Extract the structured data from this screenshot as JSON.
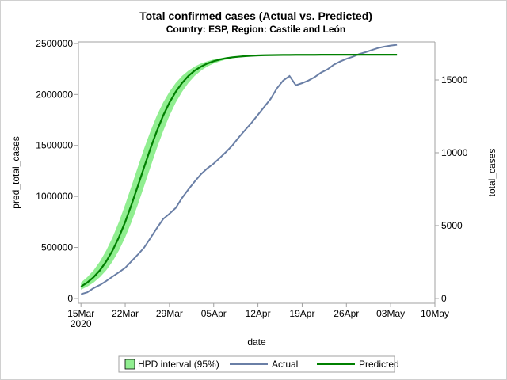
{
  "chart_data": {
    "type": "line",
    "title": "Total confirmed cases (Actual vs. Predicted)",
    "subtitle": "Country: ESP, Region: Castile and León",
    "xlabel": "date",
    "ylabel": "pred_total_cases",
    "y2label": "total_cases",
    "x_ticks": [
      "15Mar",
      "22Mar",
      "29Mar",
      "05Apr",
      "12Apr",
      "19Apr",
      "26Apr",
      "03May",
      "10May"
    ],
    "x_tick_dates": [
      "2020-03-15",
      "2020-03-22",
      "2020-03-29",
      "2020-04-05",
      "2020-04-12",
      "2020-04-19",
      "2020-04-26",
      "2020-05-03",
      "2020-05-10"
    ],
    "x_year_label": "2020",
    "xlim": [
      "2020-03-15",
      "2020-05-10"
    ],
    "y_ticks": [
      0,
      500000,
      1000000,
      1500000,
      2000000,
      2500000
    ],
    "y2_ticks": [
      0,
      5000,
      10000,
      15000
    ],
    "ylim": [
      -47000,
      2515000
    ],
    "y2lim": [
      -330,
      17610
    ],
    "grid": false,
    "legend_placement": "bottom",
    "colors": {
      "band": "#90ee90",
      "actual": "#6a7fa6",
      "predicted": "#008000",
      "axis": "#a0a0a0"
    },
    "x": [
      "2020-03-15",
      "2020-03-16",
      "2020-03-17",
      "2020-03-18",
      "2020-03-19",
      "2020-03-20",
      "2020-03-21",
      "2020-03-22",
      "2020-03-23",
      "2020-03-24",
      "2020-03-25",
      "2020-03-26",
      "2020-03-27",
      "2020-03-28",
      "2020-03-29",
      "2020-03-30",
      "2020-03-31",
      "2020-04-01",
      "2020-04-02",
      "2020-04-03",
      "2020-04-04",
      "2020-04-05",
      "2020-04-06",
      "2020-04-07",
      "2020-04-08",
      "2020-04-09",
      "2020-04-10",
      "2020-04-11",
      "2020-04-12",
      "2020-04-13",
      "2020-04-14",
      "2020-04-15",
      "2020-04-16",
      "2020-04-17",
      "2020-04-18",
      "2020-04-19",
      "2020-04-20",
      "2020-04-21",
      "2020-04-22",
      "2020-04-23",
      "2020-04-24",
      "2020-04-25",
      "2020-04-26",
      "2020-04-27",
      "2020-04-28",
      "2020-04-29",
      "2020-04-30",
      "2020-05-01",
      "2020-05-02",
      "2020-05-03",
      "2020-05-04"
    ],
    "series": [
      {
        "name": "HPD interval (95%)",
        "type": "band",
        "axis": "left",
        "lower": [
          86000,
          116000,
          156000,
          209000,
          276000,
          363000,
          470000,
          599000,
          750000,
          920000,
          1102000,
          1288000,
          1471000,
          1640000,
          1792000,
          1921000,
          2027000,
          2113000,
          2182000,
          2234000,
          2274000,
          2304000,
          2326000,
          2343000,
          2356000,
          2365000,
          2371000,
          2376000,
          2380000,
          2383000,
          2385000,
          2386000,
          2387000,
          2388000,
          2388000,
          2389000,
          2389000,
          2389000,
          2389000,
          2390000,
          2390000,
          2390000,
          2390000,
          2390000,
          2390000,
          2390000,
          2390000,
          2390000,
          2390000,
          2390000,
          2390000
        ],
        "upper": [
          156000,
          209000,
          276000,
          363000,
          470000,
          599000,
          750000,
          920000,
          1102000,
          1288000,
          1471000,
          1640000,
          1792000,
          1921000,
          2027000,
          2113000,
          2182000,
          2234000,
          2274000,
          2304000,
          2326000,
          2343000,
          2356000,
          2365000,
          2371000,
          2376000,
          2380000,
          2383000,
          2385000,
          2386000,
          2387000,
          2388000,
          2388000,
          2389000,
          2389000,
          2389000,
          2389000,
          2390000,
          2390000,
          2390000,
          2390000,
          2390000,
          2390000,
          2390000,
          2390000,
          2390000,
          2390000,
          2390000,
          2390000,
          2390000,
          2390000
        ]
      },
      {
        "name": "Actual",
        "type": "line",
        "axis": "right",
        "values": [
          290,
          418,
          707,
          924,
          1196,
          1504,
          1794,
          2101,
          2554,
          3007,
          3496,
          4148,
          4819,
          5453,
          5815,
          6214,
          6902,
          7483,
          8027,
          8533,
          8931,
          9257,
          9656,
          10073,
          10526,
          11071,
          11577,
          12066,
          12609,
          13153,
          13696,
          14421,
          14964,
          15272,
          14638,
          14783,
          14964,
          15200,
          15508,
          15725,
          16051,
          16268,
          16450,
          16595,
          16776,
          16903,
          17048,
          17193,
          17284,
          17356,
          17410
        ]
      },
      {
        "name": "Predicted",
        "type": "line",
        "axis": "left",
        "values": [
          116000,
          156000,
          209000,
          276000,
          363000,
          470000,
          599000,
          750000,
          920000,
          1102000,
          1288000,
          1471000,
          1640000,
          1792000,
          1921000,
          2027000,
          2113000,
          2182000,
          2234000,
          2274000,
          2304000,
          2326000,
          2343000,
          2356000,
          2365000,
          2371000,
          2376000,
          2380000,
          2383000,
          2385000,
          2386000,
          2387000,
          2388000,
          2388000,
          2389000,
          2389000,
          2389000,
          2389000,
          2390000,
          2390000,
          2390000,
          2390000,
          2390000,
          2390000,
          2390000,
          2390000,
          2390000,
          2390000,
          2390000,
          2390000,
          2390000
        ]
      }
    ]
  }
}
